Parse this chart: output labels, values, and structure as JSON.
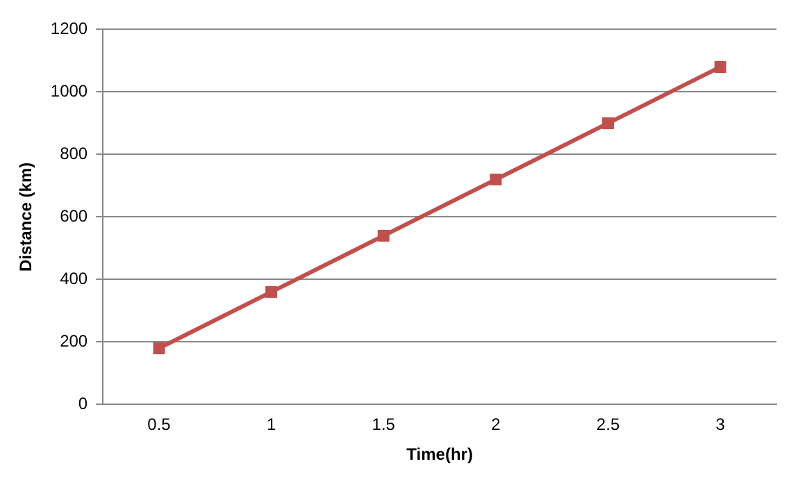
{
  "chart_data": {
    "type": "line",
    "xlabel": "Time(hr)",
    "ylabel": "Distance (km)",
    "categories": [
      "0.5",
      "1",
      "1.5",
      "2",
      "2.5",
      "3"
    ],
    "series": [
      {
        "color": "#c0504d",
        "values": [
          180,
          360,
          540,
          720,
          900,
          1080
        ]
      }
    ],
    "ylim": [
      0,
      1200
    ],
    "yticks": [
      0,
      200,
      400,
      600,
      800,
      1000,
      1200
    ],
    "grid": "y",
    "marker": "square",
    "line_style": "solid"
  }
}
